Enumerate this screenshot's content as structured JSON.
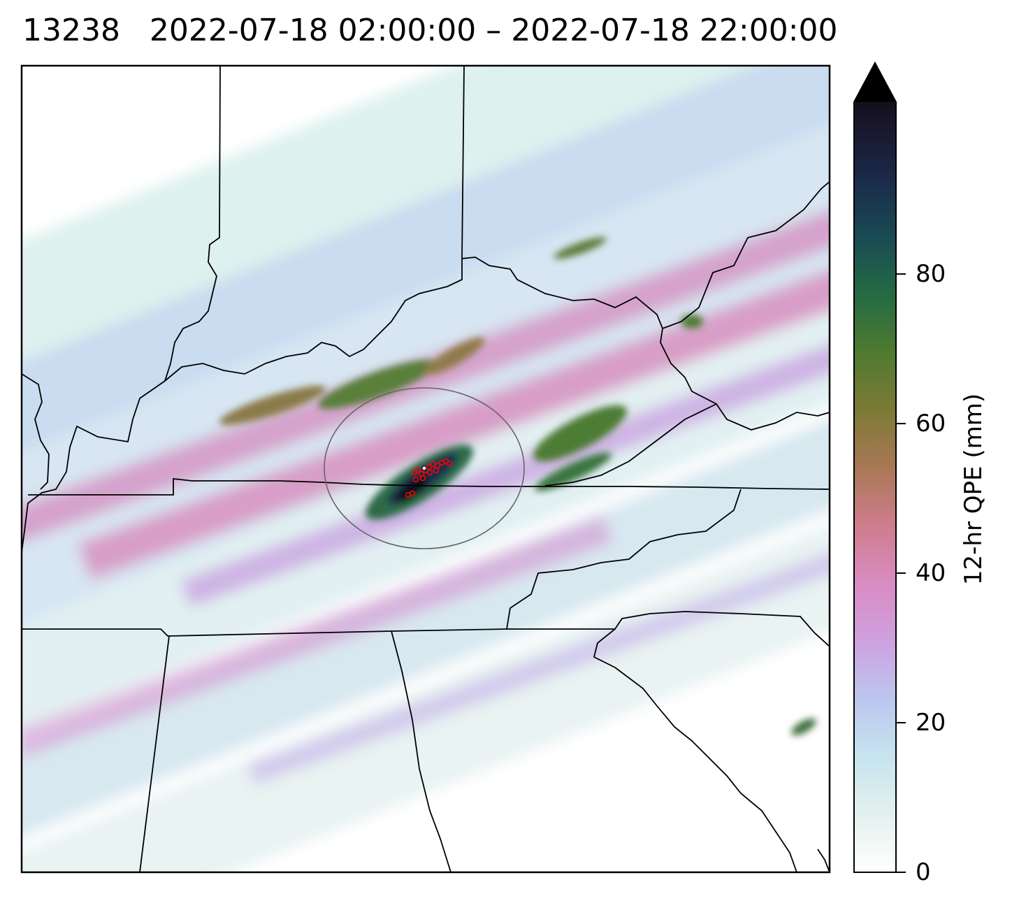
{
  "title": "13238   2022-07-18 02:00:00 – 2022-07-18 22:00:00",
  "colorbar": {
    "label": "12-hr QPE (mm)",
    "ticks": [
      0,
      20,
      40,
      60,
      80
    ],
    "range": [
      0,
      103
    ],
    "extend": "max",
    "colormap_stops": [
      "#ffffff",
      "#e3f1ee",
      "#c6e4ef",
      "#bcc6ef",
      "#cfa1df",
      "#d98cc2",
      "#cf7c8c",
      "#a97856",
      "#7c7a35",
      "#4f7a30",
      "#236b44",
      "#1a4a54",
      "#1b2a4a",
      "#1a1428",
      "#050505"
    ]
  },
  "map": {
    "features": [
      "state-borders",
      "qpe-raster",
      "storm-reports",
      "analysis-circle"
    ],
    "report_marker_color": "#ff0000",
    "circle_color": "#666666"
  }
}
